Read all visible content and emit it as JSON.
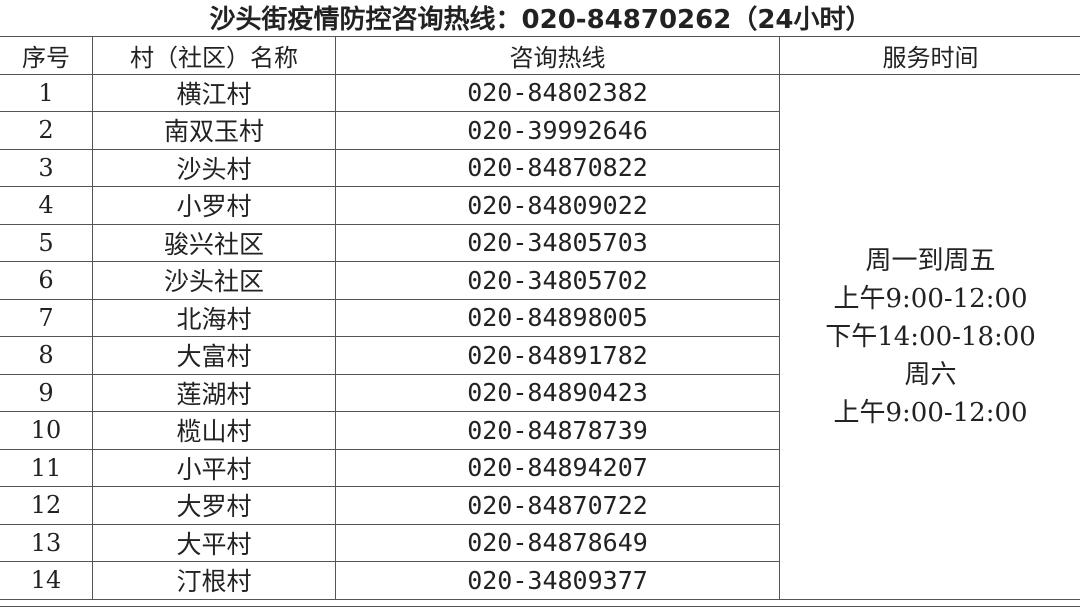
{
  "title": "沙头街疫情防控咨询热线：020-84870262（24小时）",
  "headers": [
    "序号",
    "村（社区）名称",
    "咨询热线",
    "服务时间"
  ],
  "rows": [
    {
      "no": "1",
      "name": "横江村",
      "phone": "020-84802382"
    },
    {
      "no": "2",
      "name": "南双玉村",
      "phone": "020-39992646"
    },
    {
      "no": "3",
      "name": "沙头村",
      "phone": "020-84870822"
    },
    {
      "no": "4",
      "name": "小罗村",
      "phone": "020-84809022"
    },
    {
      "no": "5",
      "name": "骏兴社区",
      "phone": "020-34805703"
    },
    {
      "no": "6",
      "name": "沙头社区",
      "phone": "020-34805702"
    },
    {
      "no": "7",
      "name": "北海村",
      "phone": "020-84898005"
    },
    {
      "no": "8",
      "name": "大富村",
      "phone": "020-84891782"
    },
    {
      "no": "9",
      "name": "莲湖村",
      "phone": "020-84890423"
    },
    {
      "no": "10",
      "name": "榄山村",
      "phone": "020-84878739"
    },
    {
      "no": "11",
      "name": "小平村",
      "phone": "020-84894207"
    },
    {
      "no": "12",
      "name": "大罗村",
      "phone": "020-84870722"
    },
    {
      "no": "13",
      "name": "大平村",
      "phone": "020-84878649"
    },
    {
      "no": "14",
      "name": "汀根村",
      "phone": "020-34809377"
    }
  ],
  "service_time": [
    "周一到周五",
    "上午9:00-12:00",
    "下午14:00-18:00",
    "周六",
    "上午9:00-12:00"
  ]
}
